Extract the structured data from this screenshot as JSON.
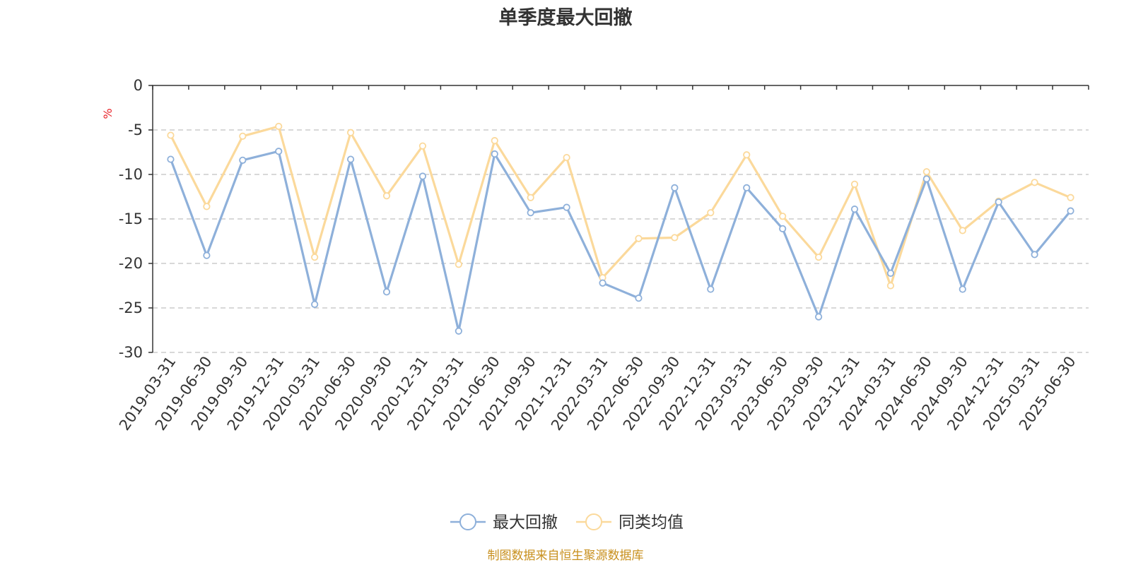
{
  "chart_data": {
    "type": "line",
    "title": "单季度最大回撤",
    "ylabel": "%",
    "xlabel": "",
    "ylim": [
      -30,
      0
    ],
    "yticks": [
      0,
      -5,
      -10,
      -15,
      -20,
      -25,
      -30
    ],
    "grid": true,
    "legend_position": "bottom-center",
    "categories": [
      "2019-03-31",
      "2019-06-30",
      "2019-09-30",
      "2019-12-31",
      "2020-03-31",
      "2020-06-30",
      "2020-09-30",
      "2020-12-31",
      "2021-03-31",
      "2021-06-30",
      "2021-09-30",
      "2021-12-31",
      "2022-03-31",
      "2022-06-30",
      "2022-09-30",
      "2022-12-31",
      "2023-03-31",
      "2023-06-30",
      "2023-09-30",
      "2023-12-31",
      "2024-03-31",
      "2024-06-30",
      "2024-09-30",
      "2024-12-31",
      "2025-03-31",
      "2025-06-30"
    ],
    "series": [
      {
        "name": "最大回撤",
        "color": "#8eb0da",
        "values": [
          -8.3,
          -19.1,
          -8.4,
          -7.4,
          -24.6,
          -8.3,
          -23.2,
          -10.2,
          -27.6,
          -7.7,
          -14.3,
          -13.7,
          -22.2,
          -23.9,
          -11.5,
          -22.9,
          -11.5,
          -16.1,
          -26.0,
          -13.9,
          -21.1,
          -10.5,
          -22.9,
          -13.1,
          -19.0,
          -14.1
        ]
      },
      {
        "name": "同类均值",
        "color": "#fbd99b",
        "values": [
          -5.6,
          -13.6,
          -5.7,
          -4.6,
          -19.3,
          -5.3,
          -12.4,
          -6.8,
          -20.1,
          -6.2,
          -12.6,
          -8.1,
          -21.6,
          -17.2,
          -17.1,
          -14.3,
          -7.8,
          -14.7,
          -19.3,
          -11.1,
          -22.5,
          -9.7,
          -16.3,
          -13.0,
          -10.9,
          -12.6
        ]
      }
    ],
    "source_note": "制图数据来自恒生聚源数据库",
    "unit_color": "#e8242a",
    "source_color": "#c8901e",
    "axis_color": "#333333",
    "grid_color": "#cccccc"
  }
}
